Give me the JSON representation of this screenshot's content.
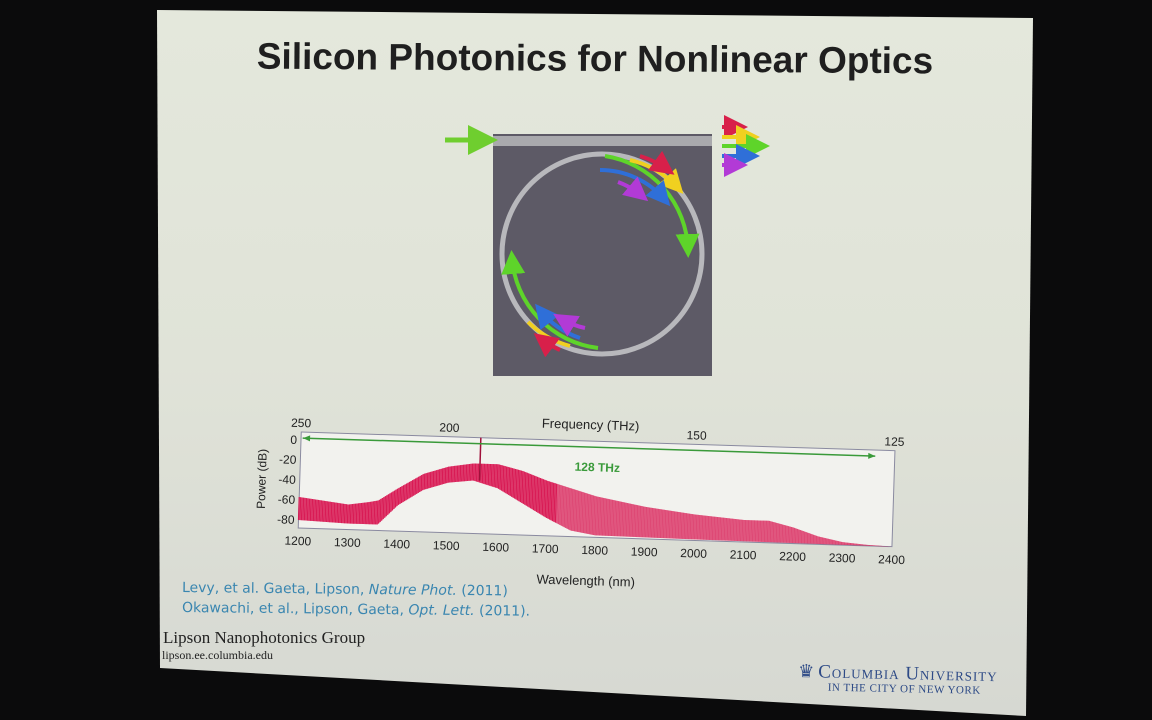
{
  "slide": {
    "title": "Silicon Photonics for Nonlinear Optics",
    "citations": [
      {
        "authors": "Levy, et al. Gaeta, Lipson, ",
        "journal": "Nature Phot.",
        "year": " (2011)"
      },
      {
        "authors": "Okawachi, et al., Lipson, Gaeta, ",
        "journal": "Opt. Lett.",
        "year": " (2011)."
      }
    ],
    "group_name": "Lipson Nanophotonics Group",
    "group_url": "lipson.ee.columbia.edu",
    "logo": {
      "name": "Columbia University",
      "tagline": "IN THE CITY OF NEW YORK",
      "icon": "crown-icon"
    },
    "diagram": {
      "description_icons": [
        "ring-resonator",
        "input-pump-arrow",
        "output-spectrum-arrows"
      ],
      "arrow_colors": [
        "#e0213a",
        "#f2d320",
        "#5dd32a",
        "#2f6fd8",
        "#b23ad6"
      ]
    }
  },
  "chart_data": {
    "type": "area",
    "xlabel": "Wavelength (nm)",
    "ylabel": "Power (dB)",
    "top_xlabel": "Frequency (THz)",
    "xlim": [
      1200,
      2400
    ],
    "ylim": [
      -88,
      8
    ],
    "xticks": [
      1200,
      1300,
      1400,
      1500,
      1600,
      1700,
      1800,
      1900,
      2000,
      2100,
      2200,
      2300,
      2400
    ],
    "yticks": [
      0,
      -20,
      -40,
      -60,
      -80
    ],
    "top_xticks": [
      250,
      200,
      150,
      125
    ],
    "annotation": "128 THz",
    "annotation_color": "#3a9a3a",
    "series_color": "#d8124f",
    "pump_wavelength": 1563,
    "span_thz": [
      250,
      127
    ],
    "upper_envelope": {
      "x": [
        1200,
        1250,
        1300,
        1340,
        1360,
        1400,
        1450,
        1500,
        1550,
        1600,
        1650,
        1700,
        1800,
        1900,
        2000,
        2100,
        2150,
        2200,
        2250,
        2300,
        2350,
        2400
      ],
      "y": [
        -57,
        -60,
        -63,
        -60,
        -58,
        -45,
        -30,
        -22,
        -18,
        -18,
        -24,
        -33,
        -47,
        -56,
        -62,
        -66,
        -66,
        -72,
        -80,
        -85,
        -87,
        -88
      ]
    },
    "lower_envelope": {
      "x": [
        1200,
        1300,
        1360,
        1400,
        1450,
        1500,
        1550,
        1600,
        1650,
        1700,
        1750,
        1800,
        2000,
        2400
      ],
      "y": [
        -80,
        -82,
        -82,
        -62,
        -46,
        -38,
        -35,
        -42,
        -56,
        -70,
        -82,
        -86,
        -87,
        -88
      ]
    }
  }
}
